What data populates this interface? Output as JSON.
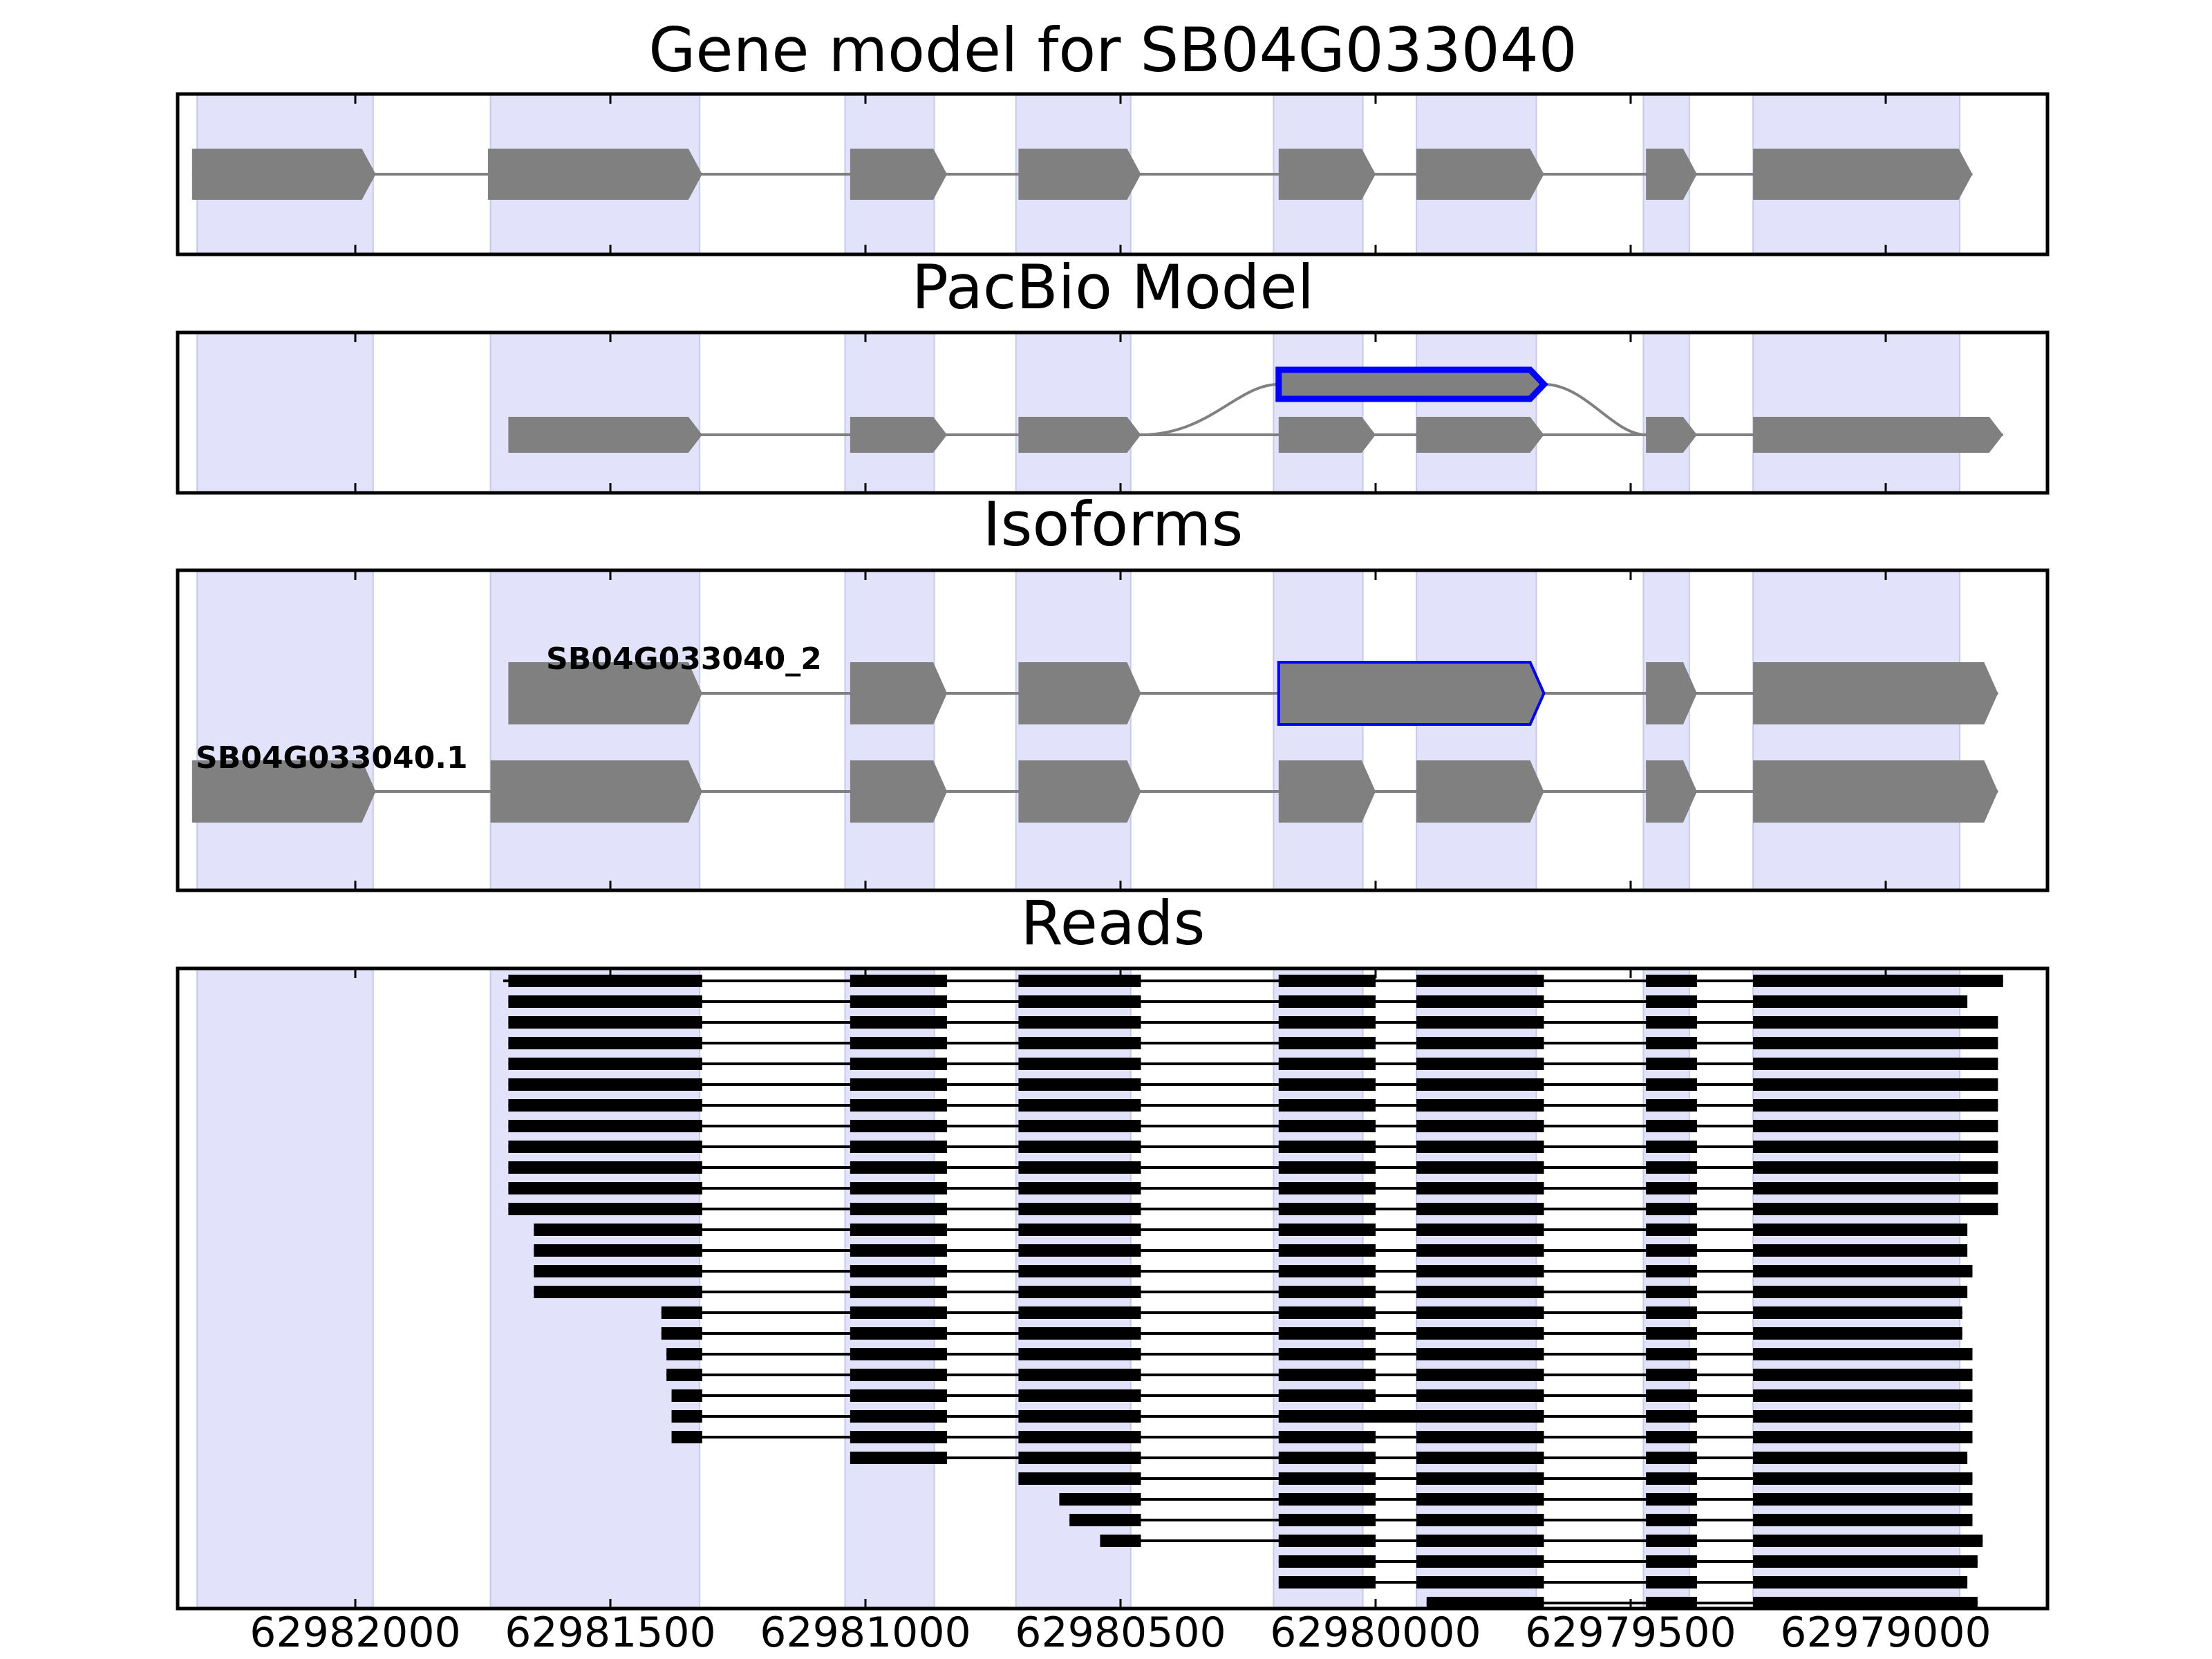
{
  "figure": {
    "panels": [
      {
        "id": "gene-model",
        "title": "Gene model for SB04G033040"
      },
      {
        "id": "pacbio-model",
        "title": "PacBio Model"
      },
      {
        "id": "isoforms",
        "title": "Isoforms"
      },
      {
        "id": "reads",
        "title": "Reads"
      }
    ],
    "x_ticks": [
      "62982000",
      "62981500",
      "62981000",
      "62980500",
      "62980000",
      "62979500",
      "62979000"
    ],
    "isoform_labels": [
      "SB04G033040_2",
      "SB04G033040.1"
    ]
  },
  "chart_data": {
    "type": "gene-structure",
    "x_axis": {
      "reversed": true,
      "range": [
        62982350,
        62978680
      ],
      "ticks": [
        62982000,
        62981500,
        62981000,
        62980500,
        62980000,
        62979500,
        62979000
      ]
    },
    "colors": {
      "exon_band": "#e2e2fb",
      "feature": "#808080",
      "highlight": "#0000ff",
      "read": "#000000"
    },
    "exon_bands": [
      [
        62982310,
        62981965
      ],
      [
        62981735,
        62981325
      ],
      [
        62981040,
        62980865
      ],
      [
        62980705,
        62980480
      ],
      [
        62980200,
        62980025
      ],
      [
        62979920,
        62979685
      ],
      [
        62979475,
        62979385
      ],
      [
        62979260,
        62978855
      ]
    ],
    "gene_model": {
      "exons": [
        [
          62982320,
          62981960
        ],
        [
          62981740,
          62981320
        ],
        [
          62981030,
          62980840
        ],
        [
          62980700,
          62980460
        ],
        [
          62980190,
          62980000
        ],
        [
          62979920,
          62979670
        ],
        [
          62979470,
          62979370
        ],
        [
          62979260,
          62978830
        ]
      ]
    },
    "pacbio_model": {
      "exons": [
        [
          62981700,
          62981320
        ],
        [
          62981030,
          62980840
        ],
        [
          62980700,
          62980460
        ],
        [
          62980190,
          62980000
        ],
        [
          62979920,
          62979670
        ],
        [
          62979470,
          62979370
        ],
        [
          62979260,
          62978770
        ]
      ],
      "retained_intron": [
        62980190,
        62979670
      ]
    },
    "isoforms": [
      {
        "name": "SB04G033040_2",
        "exons": [
          [
            62981700,
            62981320
          ],
          [
            62981030,
            62980840
          ],
          [
            62980700,
            62980460
          ],
          [
            62980190,
            62979670
          ],
          [
            62979470,
            62979370
          ],
          [
            62979260,
            62978780
          ]
        ],
        "highlight_exon": 3
      },
      {
        "name": "SB04G033040.1",
        "exons": [
          [
            62982320,
            62981960
          ],
          [
            62981735,
            62981320
          ],
          [
            62981030,
            62980840
          ],
          [
            62980700,
            62980460
          ],
          [
            62980190,
            62980000
          ],
          [
            62979920,
            62979670
          ],
          [
            62979470,
            62979370
          ],
          [
            62979260,
            62978780
          ]
        ]
      }
    ],
    "reads": [
      {
        "start": 62981710,
        "end": 62978770,
        "full": true
      },
      {
        "start": 62981700,
        "end": 62978840,
        "full": true
      },
      {
        "start": 62981700,
        "end": 62978780,
        "full": true
      },
      {
        "start": 62981700,
        "end": 62978780,
        "full": true
      },
      {
        "start": 62981700,
        "end": 62978780,
        "full": true
      },
      {
        "start": 62981700,
        "end": 62978780,
        "full": true
      },
      {
        "start": 62981700,
        "end": 62978780,
        "full": true
      },
      {
        "start": 62981700,
        "end": 62978780,
        "full": true
      },
      {
        "start": 62981700,
        "end": 62978780,
        "full": true
      },
      {
        "start": 62981700,
        "end": 62978780,
        "full": true
      },
      {
        "start": 62981700,
        "end": 62978780,
        "full": true
      },
      {
        "start": 62981700,
        "end": 62978780,
        "full": true
      },
      {
        "start": 62981650,
        "end": 62978840,
        "full": true
      },
      {
        "start": 62981650,
        "end": 62978840,
        "full": true
      },
      {
        "start": 62981650,
        "end": 62978830,
        "full": true
      },
      {
        "start": 62981650,
        "end": 62978840,
        "full": true
      },
      {
        "start": 62981400,
        "end": 62978850,
        "full": true
      },
      {
        "start": 62981400,
        "end": 62978850,
        "full": true
      },
      {
        "start": 62981390,
        "end": 62978830,
        "full": true
      },
      {
        "start": 62981390,
        "end": 62978830,
        "full": true
      },
      {
        "start": 62981380,
        "end": 62978830,
        "full": true
      },
      {
        "start": 62981380,
        "end": 62978830,
        "full": true,
        "retained": true
      },
      {
        "start": 62981380,
        "end": 62978830,
        "full": true
      },
      {
        "start": 62981030,
        "end": 62978840,
        "full": false
      },
      {
        "start": 62980700,
        "end": 62978830,
        "full": false
      },
      {
        "start": 62980620,
        "end": 62978830,
        "full": false
      },
      {
        "start": 62980600,
        "end": 62978830,
        "full": false
      },
      {
        "start": 62980540,
        "end": 62978810,
        "full": false
      },
      {
        "start": 62980190,
        "end": 62978820,
        "full": false
      },
      {
        "start": 62980190,
        "end": 62978840,
        "full": false
      },
      {
        "start": 62979900,
        "end": 62978820,
        "full": false
      }
    ]
  }
}
